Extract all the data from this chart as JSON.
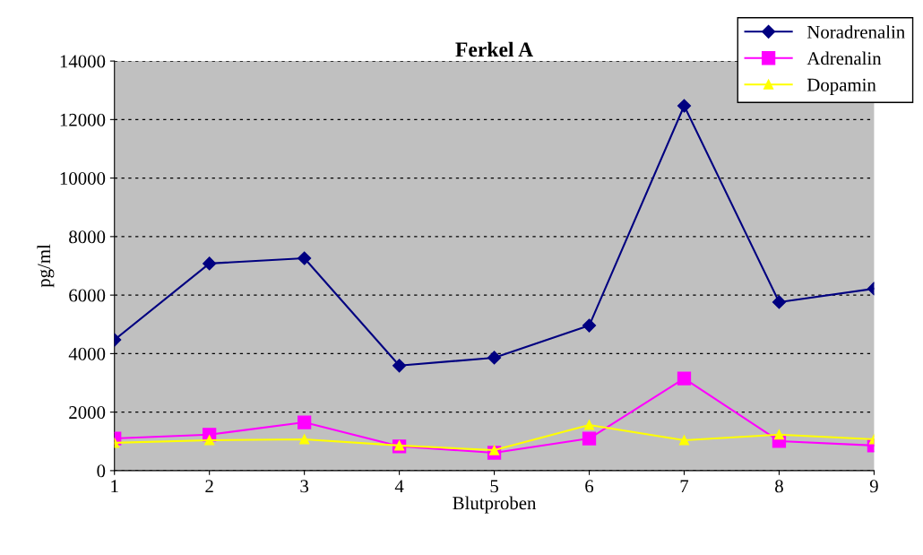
{
  "chart_data": {
    "type": "line",
    "title": "Ferkel A",
    "xlabel": "Blutproben",
    "ylabel": "pg/ml",
    "categories": [
      "1",
      "2",
      "3",
      "4",
      "5",
      "6",
      "7",
      "8",
      "9"
    ],
    "series": [
      {
        "name": "Noradrenalin",
        "color": "#000080",
        "marker": "diamond",
        "values": [
          4470,
          7080,
          7260,
          3590,
          3860,
          4960,
          12470,
          5760,
          6220
        ]
      },
      {
        "name": "Adrenalin",
        "color": "#ff00ff",
        "marker": "square",
        "values": [
          1100,
          1230,
          1650,
          830,
          610,
          1100,
          3150,
          1010,
          860
        ]
      },
      {
        "name": "Dopamin",
        "color": "#ffff00",
        "marker": "triangle",
        "values": [
          950,
          1040,
          1070,
          860,
          700,
          1560,
          1040,
          1230,
          1070
        ]
      }
    ],
    "ylim": [
      0,
      14000
    ],
    "yticks": [
      0,
      2000,
      4000,
      6000,
      8000,
      10000,
      12000,
      14000
    ],
    "grid": "y",
    "legend": "top right",
    "line_style": "solid"
  }
}
